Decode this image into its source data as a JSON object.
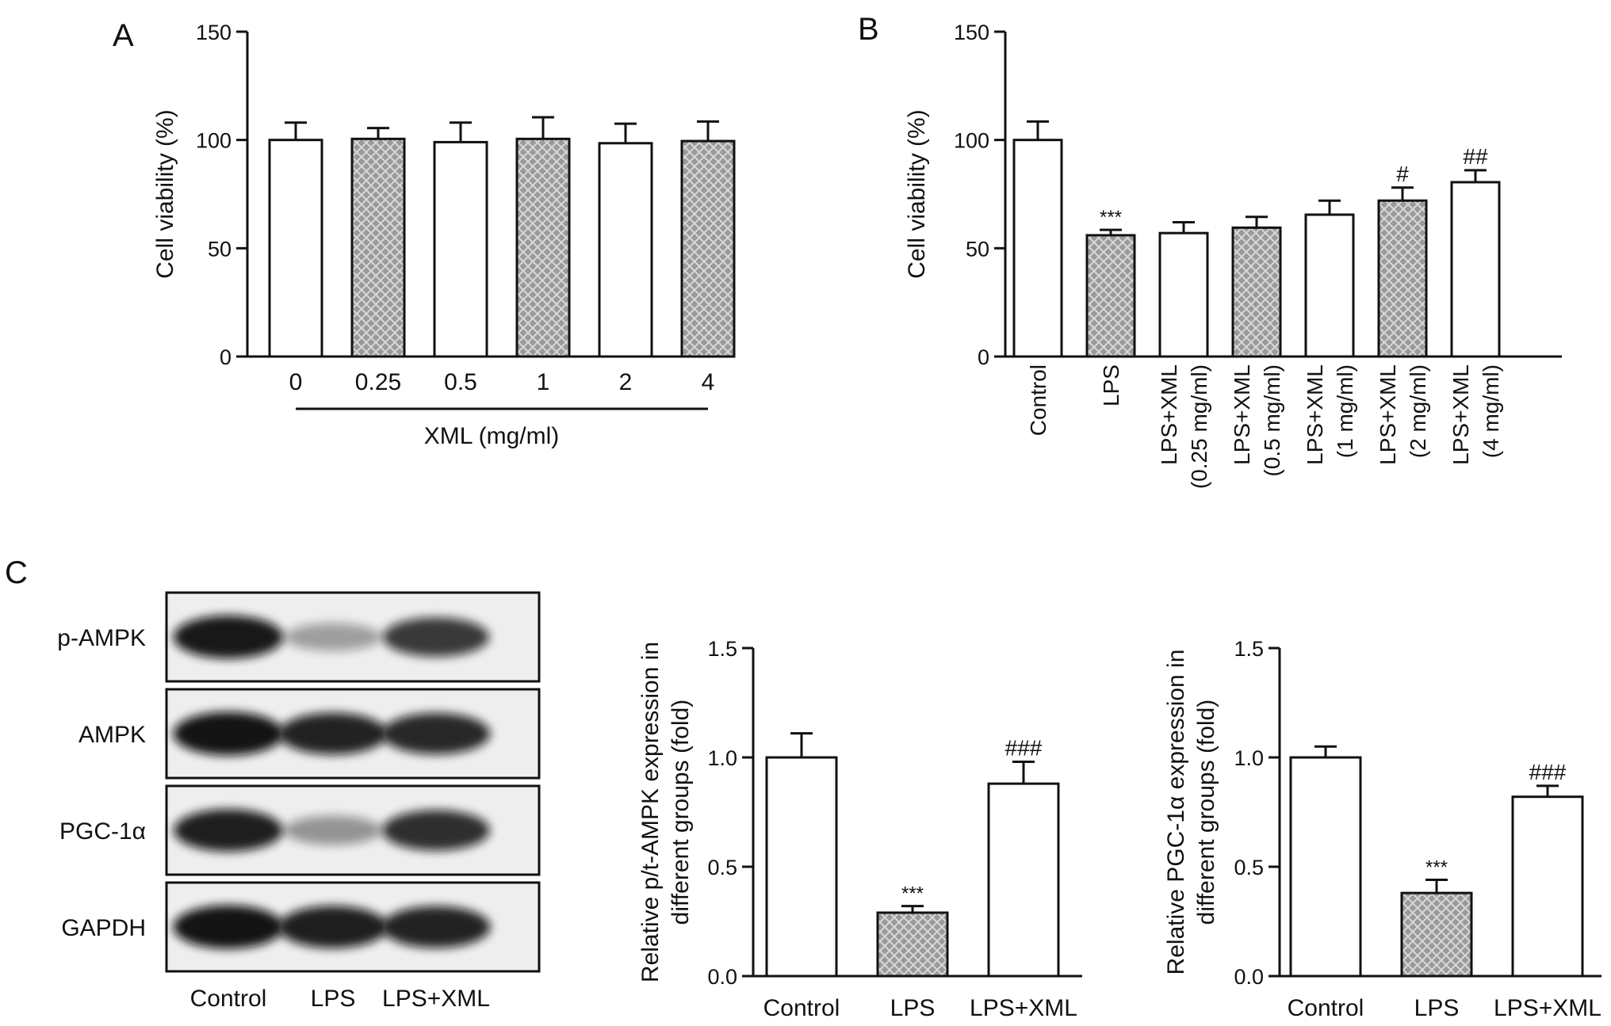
{
  "panel_labels": {
    "a": "A",
    "b": "B",
    "c": "C"
  },
  "colors": {
    "open_bar": "#ffffff",
    "hatched_bar": "#9a9a9a",
    "hatch_dot": "#d8d8d8",
    "ink": "#111111",
    "blot_band": "#111111"
  },
  "blot": {
    "rows": [
      {
        "label": "p-AMPK",
        "intensity": [
          0.95,
          0.35,
          0.8
        ]
      },
      {
        "label": "AMPK",
        "intensity": [
          0.97,
          0.9,
          0.88
        ]
      },
      {
        "label": "PGC-1α",
        "intensity": [
          0.92,
          0.4,
          0.85
        ]
      },
      {
        "label": "GAPDH",
        "intensity": [
          0.97,
          0.92,
          0.9
        ]
      }
    ],
    "lanes": [
      "Control",
      "LPS",
      "LPS+XML"
    ]
  },
  "chart_data": [
    {
      "id": "A",
      "type": "bar",
      "categories": [
        "0",
        "0.25",
        "0.5",
        "1",
        "2",
        "4"
      ],
      "values": [
        100,
        100.5,
        99,
        100.5,
        98.5,
        99.5
      ],
      "errors": [
        8,
        5,
        9,
        10,
        9,
        9
      ],
      "hatched": [
        false,
        true,
        false,
        true,
        false,
        true
      ],
      "significance": [
        "",
        "",
        "",
        "",
        "",
        ""
      ],
      "ylabel": "Cell viability (%)",
      "xlabel": "XML (mg/ml)",
      "ylim": [
        0,
        150
      ],
      "yticks": [
        0,
        50,
        100,
        150
      ],
      "tick_labels": [
        "0",
        "50",
        "100",
        "150"
      ]
    },
    {
      "id": "B",
      "type": "bar",
      "categories": [
        [
          "Control"
        ],
        [
          "LPS"
        ],
        [
          "LPS+XML",
          "(0.25 mg/ml)"
        ],
        [
          "LPS+XML",
          "(0.5 mg/ml)"
        ],
        [
          "LPS+XML",
          "(1 mg/ml)"
        ],
        [
          "LPS+XML",
          "(2 mg/ml)"
        ],
        [
          "LPS+XML",
          "(4 mg/ml)"
        ]
      ],
      "values": [
        100,
        56,
        57,
        59.5,
        65.5,
        72,
        80.5
      ],
      "errors": [
        8.5,
        2.5,
        5,
        5,
        6.5,
        6,
        5.5
      ],
      "hatched": [
        false,
        true,
        false,
        true,
        false,
        true,
        false
      ],
      "significance": [
        "",
        "***",
        "",
        "",
        "",
        "#",
        "##"
      ],
      "ylabel": "Cell viability (%)",
      "xlabel": "",
      "ylim": [
        0,
        150
      ],
      "yticks": [
        0,
        50,
        100,
        150
      ],
      "tick_labels": [
        "0",
        "50",
        "100",
        "150"
      ]
    },
    {
      "id": "C1",
      "type": "bar",
      "categories": [
        "Control",
        "LPS",
        "LPS+XML"
      ],
      "values": [
        1.0,
        0.29,
        0.88
      ],
      "errors": [
        0.11,
        0.03,
        0.1
      ],
      "hatched": [
        false,
        true,
        false
      ],
      "significance": [
        "",
        "***",
        "###"
      ],
      "ylabel": [
        "Relative p/t-AMPK expression in",
        "different groups (fold)"
      ],
      "xlabel": "",
      "ylim": [
        0,
        1.5
      ],
      "yticks": [
        0,
        0.5,
        1.0,
        1.5
      ],
      "tick_labels": [
        "0.0",
        "0.5",
        "1.0",
        "1.5"
      ]
    },
    {
      "id": "C2",
      "type": "bar",
      "categories": [
        "Control",
        "LPS",
        "LPS+XML"
      ],
      "values": [
        1.0,
        0.38,
        0.82
      ],
      "errors": [
        0.05,
        0.06,
        0.05
      ],
      "hatched": [
        false,
        true,
        false
      ],
      "significance": [
        "",
        "***",
        "###"
      ],
      "ylabel": [
        "Relative PGC-1α expression in",
        "different groups (fold)"
      ],
      "xlabel": "",
      "ylim": [
        0,
        1.5
      ],
      "yticks": [
        0,
        0.5,
        1.0,
        1.5
      ],
      "tick_labels": [
        "0.0",
        "0.5",
        "1.0",
        "1.5"
      ]
    }
  ]
}
